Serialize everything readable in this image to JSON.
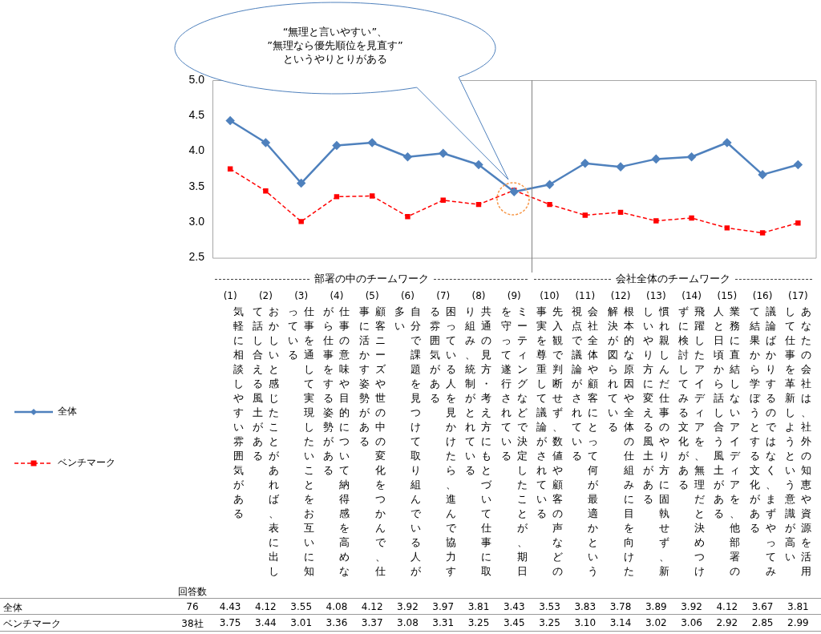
{
  "chart_data": {
    "type": "line",
    "categories": [
      "(1)\n気軽に相談しやすい雰囲気がある",
      "(2)\nおかしいと感じたことがあれば、表に出して話し合える風土がある",
      "(3)\n仕事を通して実現したいことをお互いに知っている",
      "(4)\n仕事の意味や目的について納得感を高めながら仕事をする姿勢がある",
      "(5)\n顧客ニーズや世の中の変化をつかんで、仕事に活かす姿勢がある",
      "(6)\n自分で課題を見つけて取り組んでいる人が多い",
      "(7)\n困っている人を見かけたら、進んで協力する雰囲気がある",
      "(8)\n共通の見方・考え方にもとづいて仕事に取り組み、統制がとれている",
      "(9)\nミーティングなどで決定したことが、期日を守って遂行されている",
      "(10)\n先入観で判断せず、数値や顧客の声などの事実を尊重して議論がされている",
      "(11)\n会社全体や顧客にとって何が最適かという視点で議論がされている",
      "(12)\n根本的な原因や全体の仕組みに目を向けた解決が図られている",
      "(13)\n慣れ親しんだ仕事のやり方に固執せず、新しいやり方に変える風土がある",
      "(14)\n飛躍したアイディアを、無理だと決めつけずに検討してみる文化がある",
      "(15)\n業務に直結しないアイディアを、他部署の人と日頃から話し合う風土がある",
      "(16)\n議論ばかりするのではなく、まずやってみて結果から学ぼうとする文化がある",
      "(17)\nあなたの会社は、社外の知恵や資源を活用して仕事を革新しようという意識が高い"
    ],
    "series": [
      {
        "name": "全体",
        "color": "#4f81bd",
        "marker": "diamond",
        "line_style": "solid",
        "values": [
          4.43,
          4.12,
          3.55,
          4.08,
          4.12,
          3.92,
          3.97,
          3.81,
          3.43,
          3.53,
          3.83,
          3.78,
          3.89,
          3.92,
          4.12,
          3.67,
          3.81
        ],
        "value_labels": [
          "4.43",
          "4.12",
          "3.55",
          "4.08",
          "4.12",
          "3.92",
          "3.97",
          "3.81",
          "3.43",
          "3.53",
          "3.83",
          "3.78",
          "3.89",
          "3.92",
          "4.12",
          "3.67",
          "3.81"
        ]
      },
      {
        "name": "ベンチマーク",
        "color": "#ff0000",
        "marker": "square",
        "line_style": "dashed",
        "values": [
          3.75,
          3.44,
          3.01,
          3.36,
          3.37,
          3.08,
          3.31,
          3.25,
          3.45,
          3.25,
          3.1,
          3.14,
          3.02,
          3.06,
          2.92,
          2.85,
          2.99
        ],
        "value_labels": [
          "3.75",
          "3.44",
          "3.01",
          "3.36",
          "3.37",
          "3.08",
          "3.31",
          "3.25",
          "3.45",
          "3.25",
          "3.10",
          "3.14",
          "3.02",
          "3.06",
          "2.92",
          "2.85",
          "2.99"
        ]
      }
    ],
    "ylim": [
      2.5,
      5.0
    ],
    "yticks": [
      {
        "value": 2.5,
        "label": "2.5"
      },
      {
        "value": 3,
        "label": "3.0"
      },
      {
        "value": 3.5,
        "label": "3.5"
      },
      {
        "value": 4,
        "label": "4.0"
      },
      {
        "value": 4.5,
        "label": "4.5"
      },
      {
        "value": 5,
        "label": "5.0"
      }
    ],
    "grid": false,
    "legend": "left",
    "annotations": [
      "“無理と言いやすい”、\n”無理なら優先順位を見直す”\nというやりとりがある",
      "部署の中のチームワーク",
      "会社全体のチームワーク",
      "回答数",
      "76",
      "38社"
    ]
  }
}
